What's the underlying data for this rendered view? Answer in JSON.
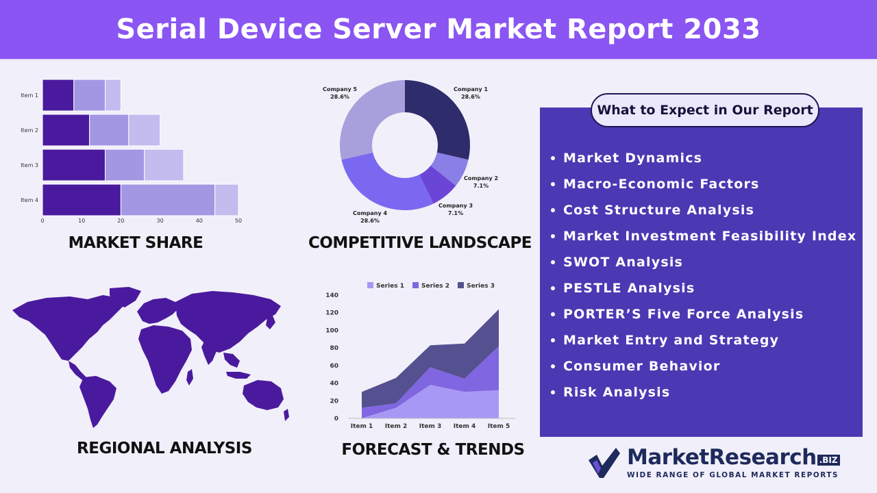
{
  "header": {
    "title": "Serial Device Server Market Report 2033"
  },
  "sections": {
    "market_share": "MARKET SHARE",
    "competitive_landscape": "COMPETITIVE LANDSCAPE",
    "regional_analysis": "REGIONAL ANALYSIS",
    "forecast_trends": "FORECAST & TRENDS"
  },
  "chart_data": [
    {
      "type": "bar",
      "orientation": "horizontal",
      "stacked": true,
      "categories": [
        "Item 1",
        "Item 2",
        "Item 3",
        "Item 4"
      ],
      "series": [
        {
          "values": [
            8,
            12,
            16,
            20
          ],
          "color": "#4a1a9e"
        },
        {
          "values": [
            8,
            10,
            10,
            24
          ],
          "color": "#a397e4"
        },
        {
          "values": [
            4,
            8,
            10,
            6
          ],
          "color": "#c4bbef"
        }
      ],
      "xlim": [
        0,
        50
      ],
      "xticks": [
        0,
        10,
        20,
        30,
        40,
        50
      ]
    },
    {
      "type": "pie",
      "donut": true,
      "slices": [
        {
          "label": "Company 1",
          "value": 28.6,
          "display": "28.6%",
          "color": "#2e2c6b"
        },
        {
          "label": "Company 2",
          "value": 7.1,
          "display": "7.1%",
          "color": "#8a7fe6"
        },
        {
          "label": "Company 3",
          "value": 7.1,
          "display": "7.1%",
          "color": "#6b46d6"
        },
        {
          "label": "Company 4",
          "value": 28.6,
          "display": "28.6%",
          "color": "#7a68f0"
        },
        {
          "label": "Company 5",
          "value": 28.6,
          "display": "28.6%",
          "color": "#a7a0dc"
        }
      ]
    },
    {
      "type": "area",
      "stacked": true,
      "categories": [
        "Item 1",
        "Item 2",
        "Item 3",
        "Item 4",
        "Item 5"
      ],
      "series": [
        {
          "name": "Series 1",
          "values": [
            0,
            12,
            38,
            30,
            32
          ],
          "color": "#a898f5"
        },
        {
          "name": "Series 2",
          "values": [
            12,
            5,
            20,
            15,
            50
          ],
          "color": "#8066e0"
        },
        {
          "name": "Series 3",
          "values": [
            18,
            29,
            25,
            40,
            42
          ],
          "color": "#55508f"
        }
      ],
      "ylim": [
        0,
        140
      ],
      "yticks": [
        0,
        20,
        40,
        60,
        80,
        100,
        120,
        140
      ],
      "legend": "top"
    }
  ],
  "report": {
    "heading": "What to Expect in Our Report",
    "items": [
      "Market Dynamics",
      "Macro-Economic Factors",
      "Cost Structure Analysis",
      "Market Investment Feasibility Index",
      "SWOT Analysis",
      "PESTLE Analysis",
      "PORTER’S Five Force Analysis",
      "Market Entry and Strategy",
      "Consumer Behavior",
      "Risk Analysis"
    ]
  },
  "logo": {
    "name_main": "MarketResearch",
    "name_suffix": ".BIZ",
    "tagline": "WIDE RANGE OF GLOBAL MARKET REPORTS"
  },
  "colors": {
    "header_bg": "#8a55f2",
    "panel_bg": "#4b38b3",
    "map_fill": "#4a1a9e",
    "page_bg": "#f1eff9"
  }
}
